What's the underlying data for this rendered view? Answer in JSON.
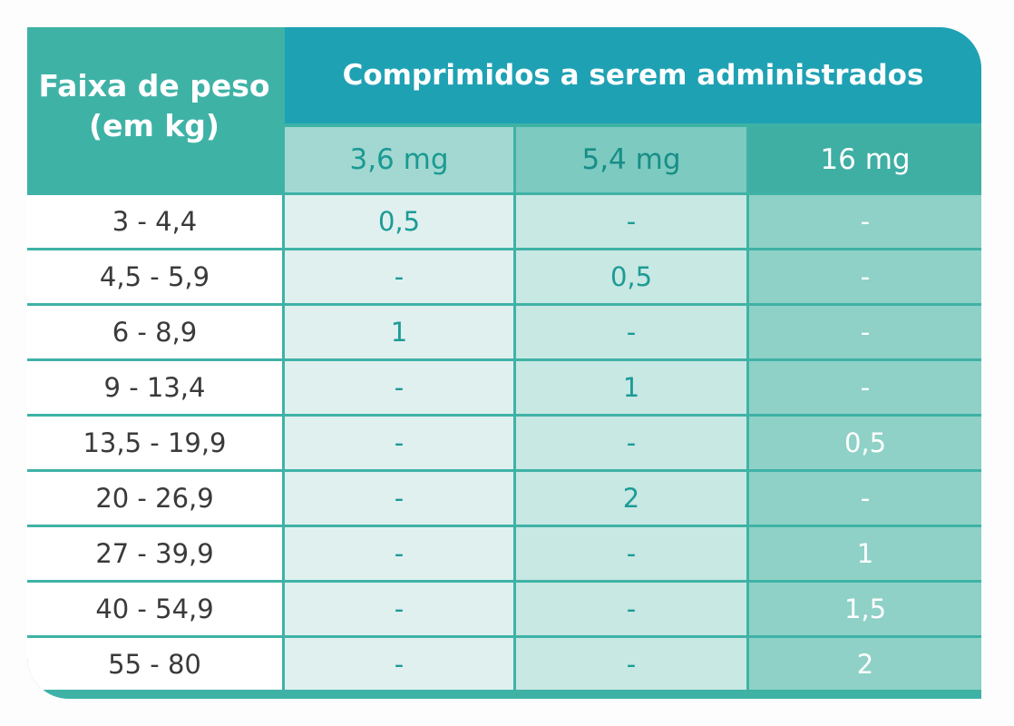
{
  "table": {
    "weight_header_line1": "Faixa de peso",
    "weight_header_line2": "(em kg)",
    "tablets_header": "Comprimidos a serem administrados",
    "dose_columns": [
      "3,6 mg",
      "5,4 mg",
      "16 mg"
    ],
    "rows": [
      {
        "range": "3 - 4,4",
        "cells": [
          "0,5",
          "-",
          "-"
        ]
      },
      {
        "range": "4,5 - 5,9",
        "cells": [
          "-",
          "0,5",
          "-"
        ]
      },
      {
        "range": "6 - 8,9",
        "cells": [
          "1",
          "-",
          "-"
        ]
      },
      {
        "range": "9 - 13,4",
        "cells": [
          "-",
          "1",
          "-"
        ]
      },
      {
        "range": "13,5 - 19,9",
        "cells": [
          "-",
          "-",
          "0,5"
        ]
      },
      {
        "range": "20 - 26,9",
        "cells": [
          "-",
          "2",
          "-"
        ]
      },
      {
        "range": "27 - 39,9",
        "cells": [
          "-",
          "-",
          "1"
        ]
      },
      {
        "range": "40 - 54,9",
        "cells": [
          "-",
          "-",
          "1,5"
        ]
      },
      {
        "range": "55 - 80",
        "cells": [
          "-",
          "-",
          "2"
        ]
      }
    ]
  },
  "colors": {
    "frame_teal": "#3fb2a6",
    "header_blue": "#1fa1b4",
    "col_3_6_bg": "#dff0ef",
    "col_5_4_bg": "#c8e8e3",
    "col_16_bg": "#8fd1c6",
    "value_text": "#1c9b96"
  }
}
